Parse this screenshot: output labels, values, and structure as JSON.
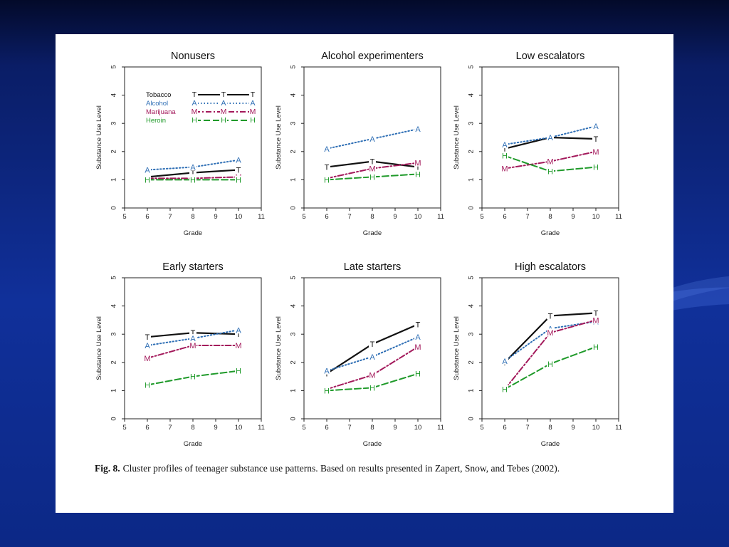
{
  "caption": {
    "label": "Fig. 8.",
    "text": "Cluster profiles of teenager substance use patterns. Based on results presented in Zapert, Snow, and Tebes (2002)."
  },
  "legend": {
    "entries": [
      {
        "name": "Tobacco",
        "marker": "T",
        "color": "#111111",
        "dash": "solid"
      },
      {
        "name": "Alcohol",
        "marker": "A",
        "color": "#2f6fb5",
        "dash": "dotted"
      },
      {
        "name": "Marijuana",
        "marker": "M",
        "color": "#a3195b",
        "dash": "dashdot"
      },
      {
        "name": "Heroin",
        "marker": "H",
        "color": "#1f9a2a",
        "dash": "dashed"
      }
    ]
  },
  "chart_data": [
    {
      "type": "line",
      "title": "Nonusers",
      "xlabel": "Grade",
      "ylabel": "Substance Use Level",
      "xlim": [
        5,
        11
      ],
      "ylim": [
        0,
        5
      ],
      "x": [
        6,
        8,
        10
      ],
      "xticks": [
        "5",
        "6",
        "7",
        "8",
        "9",
        "10",
        "11"
      ],
      "yticks": [
        "0",
        "1",
        "2",
        "3",
        "4",
        "5"
      ],
      "legend": "top-left",
      "series": [
        {
          "name": "Tobacco",
          "values": [
            1.1,
            1.25,
            1.35
          ]
        },
        {
          "name": "Alcohol",
          "values": [
            1.35,
            1.45,
            1.7
          ]
        },
        {
          "name": "Marijuana",
          "values": [
            1.05,
            1.05,
            1.1
          ]
        },
        {
          "name": "Heroin",
          "values": [
            1.0,
            1.0,
            1.0
          ]
        }
      ]
    },
    {
      "type": "line",
      "title": "Alcohol experimenters",
      "xlabel": "Grade",
      "ylabel": "Substance Use Level",
      "xlim": [
        5,
        11
      ],
      "ylim": [
        0,
        5
      ],
      "x": [
        6,
        8,
        10
      ],
      "xticks": [
        "5",
        "6",
        "7",
        "8",
        "9",
        "10",
        "11"
      ],
      "yticks": [
        "0",
        "1",
        "2",
        "3",
        "4",
        "5"
      ],
      "series": [
        {
          "name": "Tobacco",
          "values": [
            1.45,
            1.65,
            1.45
          ]
        },
        {
          "name": "Alcohol",
          "values": [
            2.1,
            2.45,
            2.8
          ]
        },
        {
          "name": "Marijuana",
          "values": [
            1.05,
            1.4,
            1.6
          ]
        },
        {
          "name": "Heroin",
          "values": [
            1.0,
            1.1,
            1.2
          ]
        }
      ]
    },
    {
      "type": "line",
      "title": "Low escalators",
      "xlabel": "Grade",
      "ylabel": "Substance Use Level",
      "xlim": [
        5,
        11
      ],
      "ylim": [
        0,
        5
      ],
      "x": [
        6,
        8,
        10
      ],
      "xticks": [
        "5",
        "6",
        "7",
        "8",
        "9",
        "10",
        "11"
      ],
      "yticks": [
        "0",
        "1",
        "2",
        "3",
        "4",
        "5"
      ],
      "series": [
        {
          "name": "Tobacco",
          "values": [
            2.1,
            2.5,
            2.45
          ]
        },
        {
          "name": "Alcohol",
          "values": [
            2.25,
            2.5,
            2.9
          ]
        },
        {
          "name": "Marijuana",
          "values": [
            1.4,
            1.65,
            2.0
          ]
        },
        {
          "name": "Heroin",
          "values": [
            1.85,
            1.3,
            1.45
          ]
        }
      ]
    },
    {
      "type": "line",
      "title": "Early starters",
      "xlabel": "Grade",
      "ylabel": "Substance Use Level",
      "xlim": [
        5,
        11
      ],
      "ylim": [
        0,
        5
      ],
      "x": [
        6,
        8,
        10
      ],
      "xticks": [
        "5",
        "6",
        "7",
        "8",
        "9",
        "10",
        "11"
      ],
      "yticks": [
        "0",
        "1",
        "2",
        "3",
        "4",
        "5"
      ],
      "series": [
        {
          "name": "Tobacco",
          "values": [
            2.9,
            3.05,
            3.0
          ]
        },
        {
          "name": "Alcohol",
          "values": [
            2.6,
            2.85,
            3.15
          ]
        },
        {
          "name": "Marijuana",
          "values": [
            2.15,
            2.6,
            2.6
          ]
        },
        {
          "name": "Heroin",
          "values": [
            1.2,
            1.5,
            1.7
          ]
        }
      ]
    },
    {
      "type": "line",
      "title": "Late starters",
      "xlabel": "Grade",
      "ylabel": "Substance Use Level",
      "xlim": [
        5,
        11
      ],
      "ylim": [
        0,
        5
      ],
      "x": [
        6,
        8,
        10
      ],
      "xticks": [
        "5",
        "6",
        "7",
        "8",
        "9",
        "10",
        "11"
      ],
      "yticks": [
        "0",
        "1",
        "2",
        "3",
        "4",
        "5"
      ],
      "series": [
        {
          "name": "Tobacco",
          "values": [
            1.6,
            2.65,
            3.35
          ]
        },
        {
          "name": "Alcohol",
          "values": [
            1.7,
            2.2,
            2.9
          ]
        },
        {
          "name": "Marijuana",
          "values": [
            1.05,
            1.55,
            2.55
          ]
        },
        {
          "name": "Heroin",
          "values": [
            1.0,
            1.1,
            1.6
          ]
        }
      ]
    },
    {
      "type": "line",
      "title": "High escalators",
      "xlabel": "Grade",
      "ylabel": "Substance Use Level",
      "xlim": [
        5,
        11
      ],
      "ylim": [
        0,
        5
      ],
      "x": [
        6,
        8,
        10
      ],
      "xticks": [
        "5",
        "6",
        "7",
        "8",
        "9",
        "10",
        "11"
      ],
      "yticks": [
        "0",
        "1",
        "2",
        "3",
        "4",
        "5"
      ],
      "series": [
        {
          "name": "Tobacco",
          "values": [
            2.0,
            3.65,
            3.75
          ]
        },
        {
          "name": "Alcohol",
          "values": [
            2.05,
            3.2,
            3.45
          ]
        },
        {
          "name": "Marijuana",
          "values": [
            1.05,
            3.05,
            3.5
          ]
        },
        {
          "name": "Heroin",
          "values": [
            1.05,
            1.95,
            2.55
          ]
        }
      ]
    }
  ]
}
